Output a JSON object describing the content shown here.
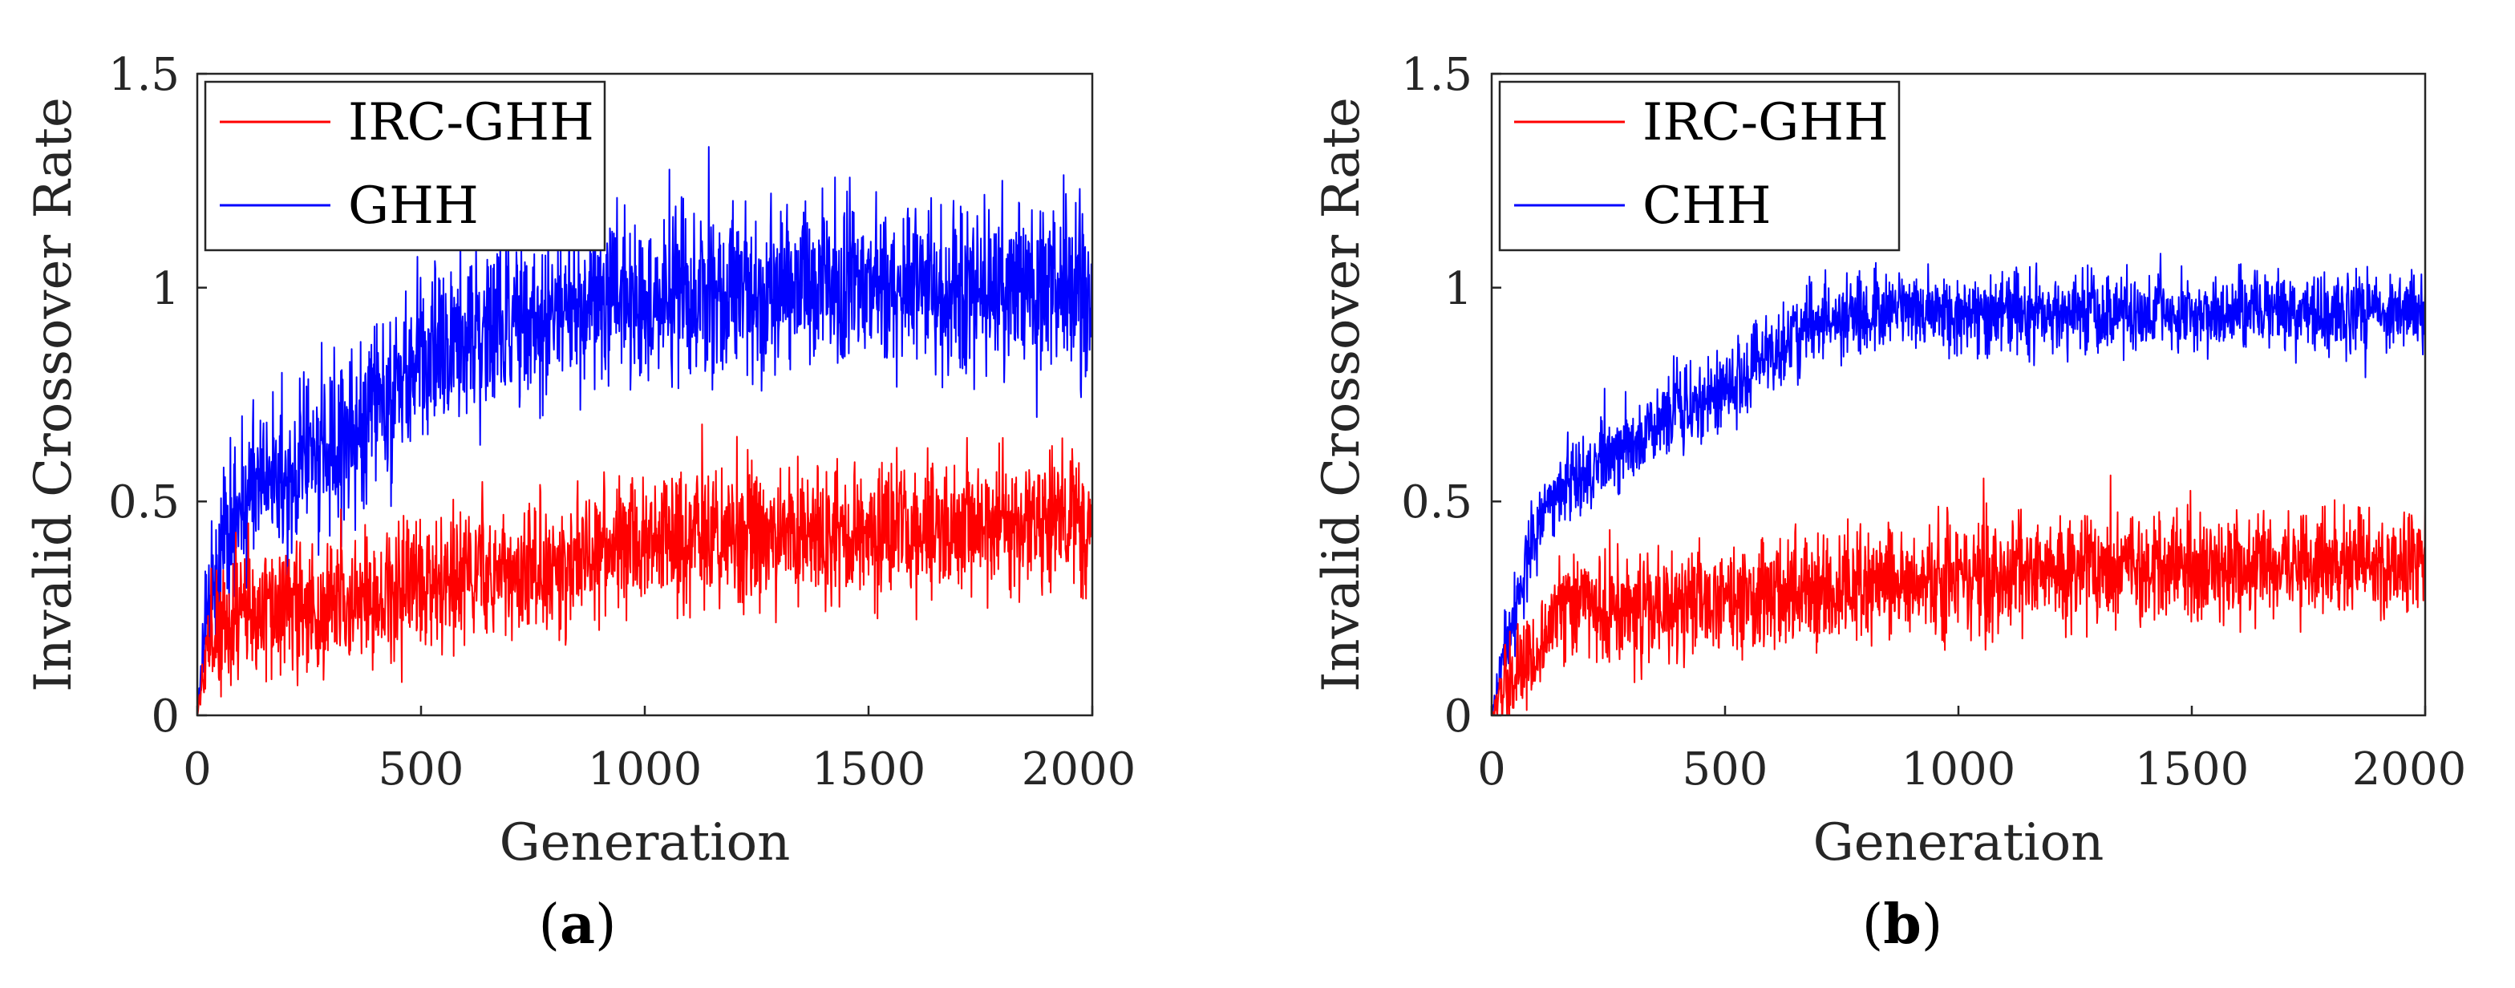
{
  "figure": {
    "panels": [
      "a",
      "b"
    ]
  },
  "chart_data": [
    {
      "type": "line",
      "caption_letter": "a",
      "title": "",
      "xlabel": "Generation",
      "ylabel": "Invalid Crossover Rate",
      "xlim": [
        0,
        2000
      ],
      "ylim": [
        0,
        1.5
      ],
      "xticks": [
        0,
        500,
        1000,
        1500,
        2000
      ],
      "xtick_labels": [
        "0",
        "500",
        "1000",
        "1500",
        "2000"
      ],
      "yticks": [
        0,
        0.5,
        1,
        1.5
      ],
      "ytick_labels": [
        "0",
        "0.5",
        "1",
        "1.5"
      ],
      "legend_location": "top-left",
      "series": [
        {
          "name": "IRC-GHH",
          "color": "#ff0000",
          "generations": 2000,
          "trend": [
            [
              0,
              0.0
            ],
            [
              25,
              0.15
            ],
            [
              60,
              0.22
            ],
            [
              200,
              0.25
            ],
            [
              400,
              0.28
            ],
            [
              600,
              0.32
            ],
            [
              800,
              0.35
            ],
            [
              1000,
              0.4
            ],
            [
              1200,
              0.42
            ],
            [
              1400,
              0.43
            ],
            [
              1600,
              0.44
            ],
            [
              1800,
              0.45
            ],
            [
              2000,
              0.46
            ]
          ],
          "noise_amplitude": 0.14
        },
        {
          "name": "GHH",
          "color": "#0000ff",
          "generations": 2000,
          "trend": [
            [
              0,
              0.0
            ],
            [
              25,
              0.3
            ],
            [
              60,
              0.45
            ],
            [
              200,
              0.58
            ],
            [
              300,
              0.64
            ],
            [
              400,
              0.72
            ],
            [
              500,
              0.82
            ],
            [
              600,
              0.88
            ],
            [
              700,
              0.92
            ],
            [
              800,
              0.95
            ],
            [
              1000,
              0.97
            ],
            [
              1200,
              1.0
            ],
            [
              1500,
              1.0
            ],
            [
              1800,
              1.0
            ],
            [
              2000,
              1.0
            ]
          ],
          "noise_amplitude": 0.17
        }
      ]
    },
    {
      "type": "line",
      "caption_letter": "b",
      "title": "",
      "xlabel": "Generation",
      "ylabel": "Invalid Crossover Rate",
      "xlim": [
        0,
        2000
      ],
      "ylim": [
        0,
        1.5
      ],
      "xticks": [
        0,
        500,
        1000,
        1500,
        2000
      ],
      "xtick_labels": [
        "0",
        "500",
        "1000",
        "1500",
        "2000"
      ],
      "yticks": [
        0,
        0.5,
        1,
        1.5
      ],
      "ytick_labels": [
        "0",
        "0.5",
        "1",
        "1.5"
      ],
      "legend_location": "top-left",
      "series": [
        {
          "name": "IRC-GHH",
          "color": "#ff0000",
          "generations": 2000,
          "trend": [
            [
              0,
              0.0
            ],
            [
              40,
              0.08
            ],
            [
              100,
              0.15
            ],
            [
              150,
              0.25
            ],
            [
              200,
              0.28
            ],
            [
              300,
              0.24
            ],
            [
              500,
              0.27
            ],
            [
              700,
              0.3
            ],
            [
              1000,
              0.32
            ],
            [
              1200,
              0.34
            ],
            [
              1500,
              0.35
            ],
            [
              1800,
              0.35
            ],
            [
              2000,
              0.35
            ]
          ],
          "noise_amplitude": 0.11
        },
        {
          "name": "CHH",
          "color": "#0000ff",
          "generations": 2000,
          "trend": [
            [
              0,
              0.0
            ],
            [
              40,
              0.2
            ],
            [
              100,
              0.45
            ],
            [
              150,
              0.55
            ],
            [
              200,
              0.55
            ],
            [
              300,
              0.65
            ],
            [
              400,
              0.72
            ],
            [
              500,
              0.75
            ],
            [
              600,
              0.85
            ],
            [
              700,
              0.92
            ],
            [
              800,
              0.94
            ],
            [
              1000,
              0.94
            ],
            [
              1300,
              0.94
            ],
            [
              1600,
              0.94
            ],
            [
              2000,
              0.94
            ]
          ],
          "noise_amplitude": 0.08
        }
      ]
    }
  ]
}
